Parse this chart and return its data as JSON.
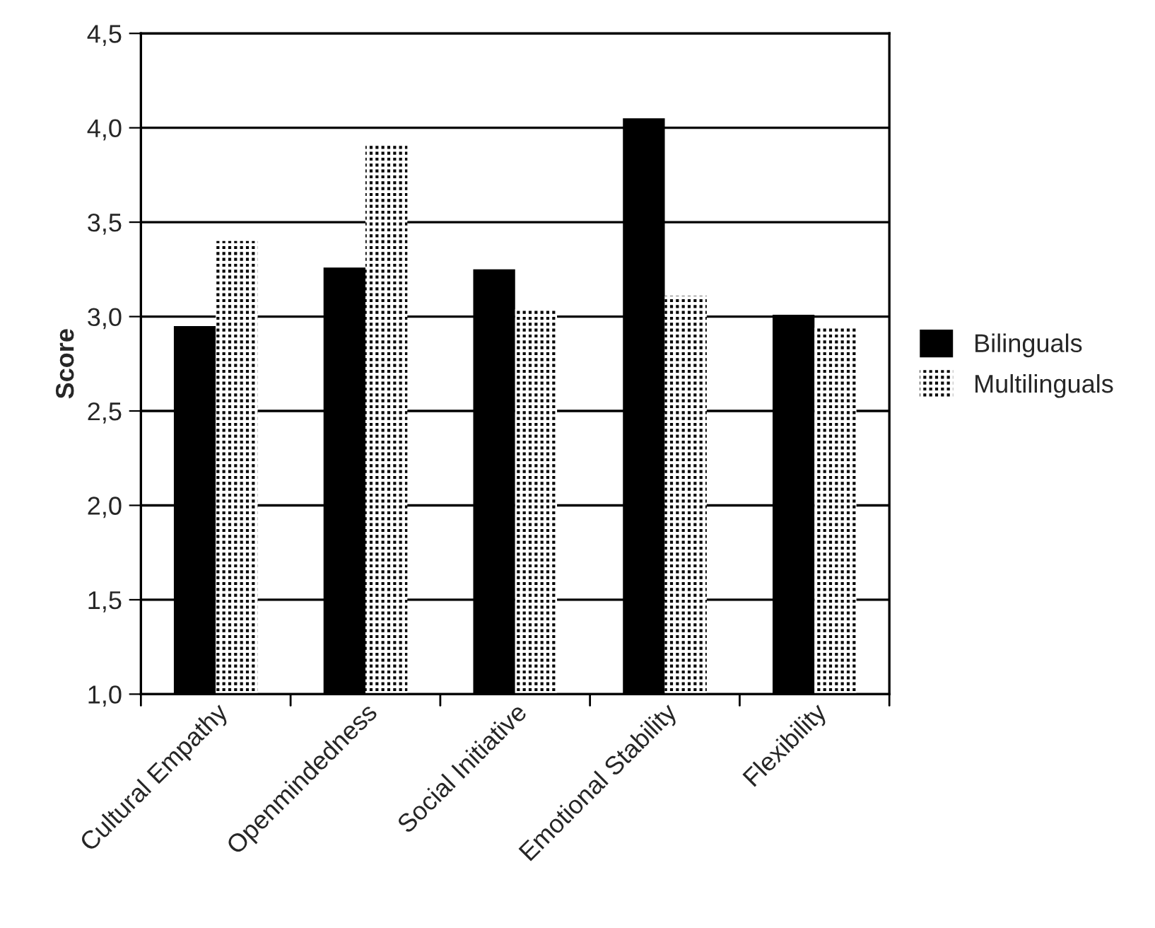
{
  "chart_data": {
    "type": "bar",
    "ylabel": "Score",
    "categories": [
      "Cultural Empathy",
      "Openmindedness",
      "Social Initiative",
      "Emotional Stability",
      "Flexibility"
    ],
    "series": [
      {
        "name": "Bilinguals",
        "color": "#000000",
        "values": [
          2.95,
          3.26,
          3.25,
          4.05,
          3.01
        ]
      },
      {
        "name": "Multilinguals",
        "color": "#000000",
        "values": [
          3.4,
          3.92,
          3.04,
          3.11,
          2.94
        ]
      }
    ],
    "ylim": [
      1.0,
      4.5
    ],
    "yticks": [
      {
        "value": 1.0,
        "label": "1,0"
      },
      {
        "value": 1.5,
        "label": "1,5"
      },
      {
        "value": 2.0,
        "label": "2,0"
      },
      {
        "value": 2.5,
        "label": "2,5"
      },
      {
        "value": 3.0,
        "label": "3,0"
      },
      {
        "value": 3.5,
        "label": "3,5"
      },
      {
        "value": 4.0,
        "label": "4,0"
      },
      {
        "value": 4.5,
        "label": "4,5"
      }
    ],
    "grid": "y",
    "legend": "right"
  }
}
